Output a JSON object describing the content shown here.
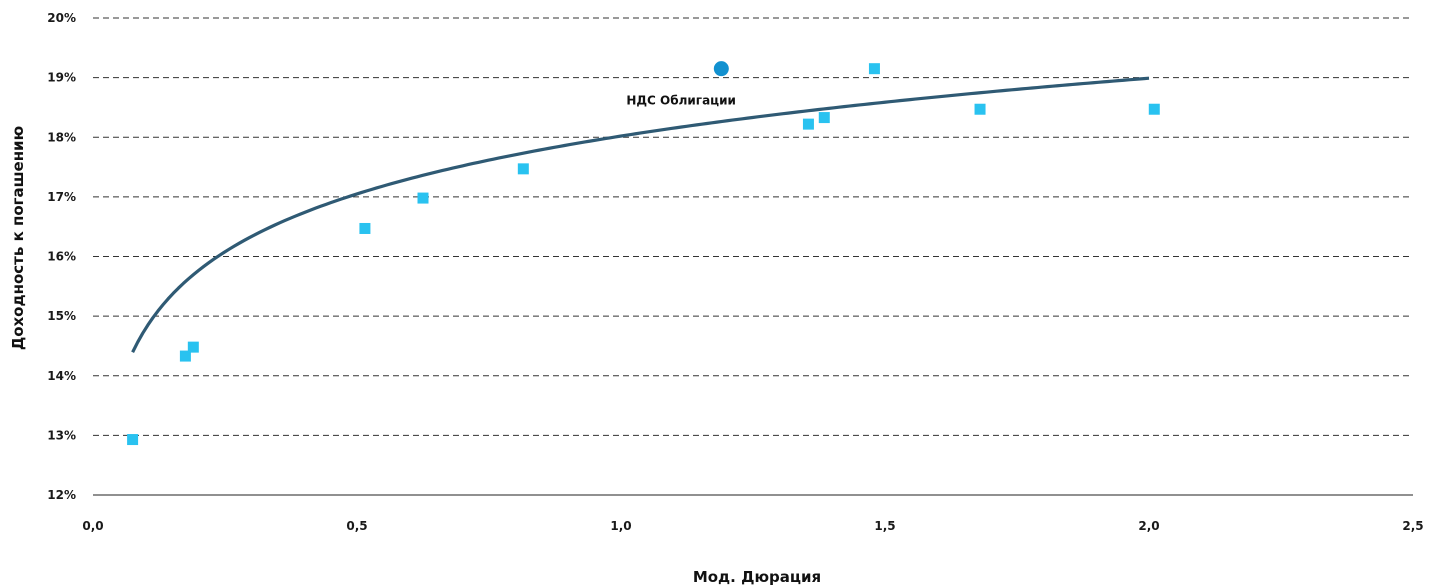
{
  "chart_data": {
    "type": "scatter",
    "xlabel": "Мод. Дюрация",
    "ylabel": "Доходность к погашению",
    "xlim": [
      0,
      2.5
    ],
    "ylim": [
      12,
      20
    ],
    "x_ticks": [
      "0,0",
      "0,5",
      "1,0",
      "1,5",
      "2,0",
      "2,5"
    ],
    "y_ticks": [
      "12%",
      "13%",
      "14%",
      "15%",
      "16%",
      "17%",
      "18%",
      "19%",
      "20%"
    ],
    "grid": "horizontal dashed",
    "series": [
      {
        "kind": "points",
        "marker": "square",
        "color": "#29c2f0",
        "points": [
          {
            "x": 0.075,
            "y": 12.93
          },
          {
            "x": 0.175,
            "y": 14.33
          },
          {
            "x": 0.19,
            "y": 14.48
          },
          {
            "x": 0.515,
            "y": 16.47
          },
          {
            "x": 0.625,
            "y": 16.98
          },
          {
            "x": 0.815,
            "y": 17.47
          },
          {
            "x": 1.355,
            "y": 18.22
          },
          {
            "x": 1.385,
            "y": 18.33
          },
          {
            "x": 1.48,
            "y": 19.15
          },
          {
            "x": 1.68,
            "y": 18.47
          },
          {
            "x": 2.01,
            "y": 18.47
          }
        ]
      },
      {
        "kind": "highlight",
        "marker": "circle",
        "color": "#1291d0",
        "points": [
          {
            "x": 1.19,
            "y": 19.15
          }
        ],
        "label": "НДС  Облигации"
      },
      {
        "kind": "trendline",
        "color": "#2f5a74",
        "model": "logarithmic",
        "formula": "y = 18.02 + 1.4 * ln(x)",
        "x_range": [
          0.075,
          2.0
        ]
      }
    ]
  }
}
